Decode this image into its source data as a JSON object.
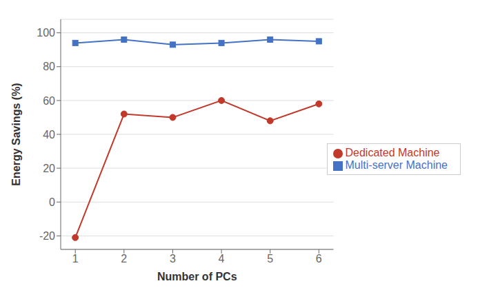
{
  "chart_data": {
    "type": "line",
    "x": [
      1,
      2,
      3,
      4,
      5,
      6
    ],
    "series": [
      {
        "name": "Dedicated Machine",
        "color": "#C0392B",
        "marker": "circle",
        "values": [
          -21,
          52,
          50,
          60,
          48,
          58
        ]
      },
      {
        "name": "Multi-server Machine",
        "color": "#4472C4",
        "marker": "square",
        "values": [
          94,
          96,
          93,
          94,
          96,
          95
        ]
      }
    ],
    "xlabel": "Number of PCs",
    "ylabel": "Energy Savings (%)",
    "xlim": [
      0.7,
      6.3
    ],
    "ylim": [
      -28,
      108
    ],
    "xticks": [
      1,
      2,
      3,
      4,
      5,
      6
    ],
    "yticks": [
      -20,
      0,
      20,
      40,
      60,
      80,
      100
    ],
    "grid": true,
    "legend": "center right"
  }
}
